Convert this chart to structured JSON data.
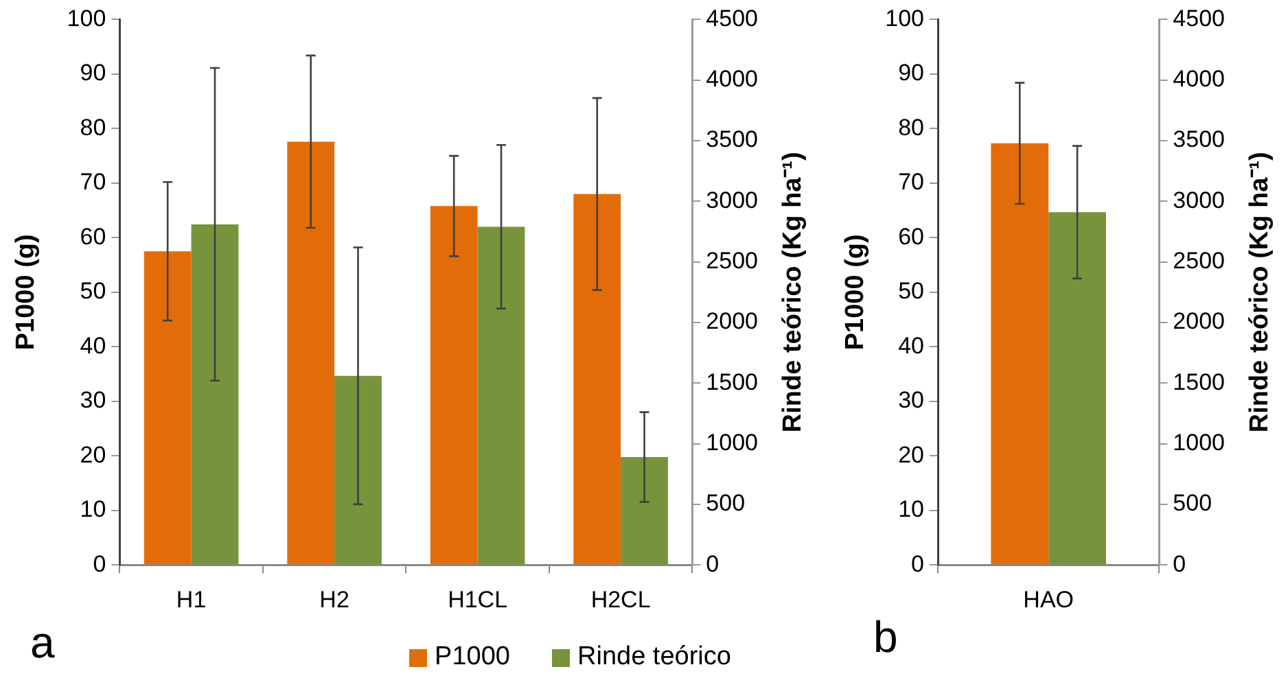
{
  "chart_data": [
    {
      "type": "bar",
      "categories": [
        "H1",
        "H2",
        "H1CL",
        "H2CL"
      ],
      "ylabel": "P1000 (g)",
      "y2label": "Rinde teórico (Kg ha⁻¹)",
      "ylim": [
        0,
        100
      ],
      "yticks": [
        0,
        10,
        20,
        30,
        40,
        50,
        60,
        70,
        80,
        90,
        100
      ],
      "y2lim": [
        0,
        4500
      ],
      "y2ticks": [
        0,
        500,
        1000,
        1500,
        2000,
        2500,
        3000,
        3500,
        4000,
        4500
      ],
      "legend": "bottom",
      "annotations": [
        "a"
      ],
      "series": [
        {
          "name": "P1000",
          "color": "#e36c0a",
          "values": [
            57.5,
            77.6,
            65.8,
            68.0
          ],
          "errors": [
            12.7,
            15.8,
            9.2,
            17.6
          ]
        },
        {
          "name": "Rinde teórico",
          "color": "#77933c",
          "axis": "y2",
          "values": [
            2810,
            1560,
            2790,
            890
          ],
          "errors": [
            1290,
            1060,
            675,
            370
          ]
        }
      ]
    },
    {
      "type": "bar",
      "categories": [
        "HAO"
      ],
      "ylabel": "P1000 (g)",
      "y2label": "Rinde teórico (Kg ha⁻¹)",
      "ylim": [
        0,
        100
      ],
      "yticks": [
        0,
        10,
        20,
        30,
        40,
        50,
        60,
        70,
        80,
        90,
        100
      ],
      "y2lim": [
        0,
        4500
      ],
      "y2ticks": [
        0,
        500,
        1000,
        1500,
        2000,
        2500,
        3000,
        3500,
        4000,
        4500
      ],
      "annotations": [
        "b"
      ],
      "series": [
        {
          "color": "#e36c0a",
          "values": [
            77.3
          ],
          "errors": [
            11.1
          ]
        },
        {
          "color": "#77933c",
          "axis": "y2",
          "values": [
            2910
          ],
          "errors": [
            547
          ]
        }
      ]
    }
  ]
}
